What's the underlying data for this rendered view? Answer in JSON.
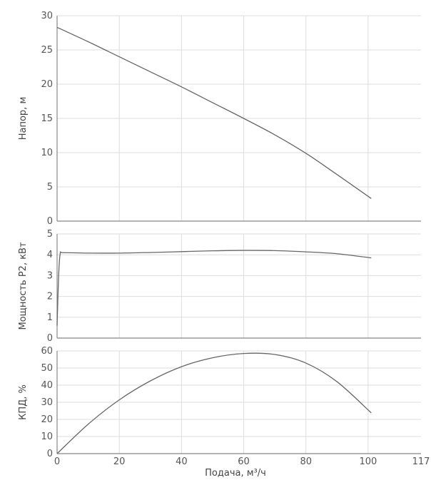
{
  "chart_data": [
    {
      "type": "line",
      "ylabel": "Напор, м",
      "xlim": [
        0,
        117
      ],
      "ylim": [
        0,
        30
      ],
      "yticks": [
        0,
        5,
        10,
        15,
        20,
        25,
        30
      ],
      "grid": true,
      "line_color": "#666666",
      "series": [
        {
          "x": [
            0,
            10,
            20,
            30,
            40,
            50,
            60,
            70,
            80,
            90,
            101
          ],
          "values": [
            28.3,
            26.2,
            24.0,
            21.8,
            19.6,
            17.3,
            15.0,
            12.6,
            9.9,
            6.8,
            3.3
          ]
        }
      ]
    },
    {
      "type": "line",
      "ylabel": "Мощность Р2, кВт",
      "xlim": [
        0,
        117
      ],
      "ylim": [
        0,
        5
      ],
      "yticks": [
        0,
        1,
        2,
        3,
        4,
        5
      ],
      "grid": true,
      "line_color": "#666666",
      "series": [
        {
          "x": [
            0,
            0.5,
            1,
            2,
            10,
            20,
            30,
            40,
            50,
            60,
            70,
            80,
            90,
            101
          ],
          "values": [
            0.6,
            3.0,
            4.05,
            4.1,
            4.08,
            4.08,
            4.11,
            4.15,
            4.19,
            4.21,
            4.2,
            4.14,
            4.05,
            3.85
          ]
        }
      ]
    },
    {
      "type": "line",
      "ylabel": "КПД, %",
      "xlabel": "Подача, м³/ч",
      "xlim": [
        0,
        117
      ],
      "ylim": [
        0,
        60
      ],
      "yticks": [
        0,
        10,
        20,
        30,
        40,
        50,
        60
      ],
      "xticks": [
        0,
        20,
        40,
        60,
        80,
        100,
        117
      ],
      "grid": true,
      "line_color": "#666666",
      "series": [
        {
          "x": [
            0,
            10,
            20,
            30,
            40,
            50,
            60,
            70,
            80,
            90,
            101
          ],
          "values": [
            0,
            17.2,
            31.4,
            42.5,
            50.8,
            56.0,
            58.5,
            57.9,
            52.9,
            42.0,
            23.8
          ]
        }
      ]
    }
  ]
}
